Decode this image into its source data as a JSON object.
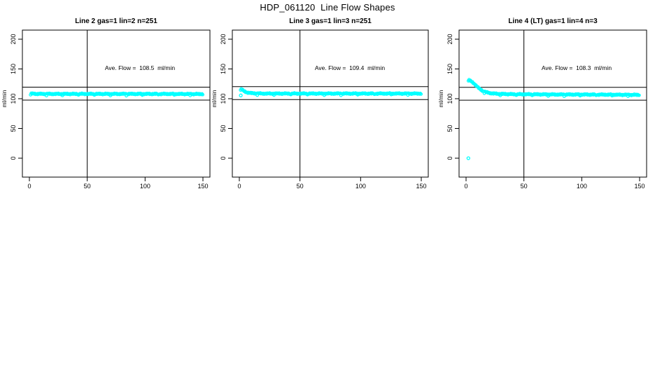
{
  "page_title": "HDP_061120  Line Flow Shapes",
  "colors": {
    "background": "#ffffff",
    "points": "#00ffff",
    "lines": "#000000",
    "text": "#000000"
  },
  "chart_data": {
    "type": "scatter",
    "main_title": "HDP_061120  Line Flow Shapes",
    "ylabel": "ml/min",
    "x_ticks": [
      0,
      50,
      100,
      150
    ],
    "y_ticks": [
      0,
      50,
      100,
      150,
      200
    ],
    "xlim": [
      0,
      150
    ],
    "ylim": [
      -30,
      215
    ],
    "vline_x": 50,
    "grid": false,
    "legend": "none",
    "panels": [
      {
        "title": "Line 2 gas=1 lin=2 n=251",
        "annotation": "Ave. Flow =  108.5  ml/min",
        "ave_flow_ml_min": 108.5,
        "n_points": 251,
        "ref_line_upper": 119.4,
        "ref_line_lower": 97.7,
        "profile": {
          "x": [
            1,
            5,
            10,
            20,
            40,
            60,
            80,
            100,
            120,
            140,
            150
          ],
          "y": [
            108.5,
            108.2,
            108.0,
            108.0,
            108.0,
            108.0,
            108.0,
            108.0,
            108.0,
            107.8,
            107.8
          ]
        },
        "x_start": 1,
        "outliers": []
      },
      {
        "title": "Line 3 gas=1 lin=3 n=251",
        "annotation": "Ave. Flow =  109.4  ml/min",
        "ave_flow_ml_min": 109.4,
        "n_points": 251,
        "ref_line_upper": 120.3,
        "ref_line_lower": 98.5,
        "profile": {
          "x": [
            1,
            2,
            3,
            4,
            6,
            8,
            10,
            15,
            20,
            40,
            60,
            80,
            100,
            120,
            140,
            150
          ],
          "y": [
            116.5,
            115.5,
            114.0,
            112.5,
            110.8,
            109.8,
            109.3,
            108.8,
            108.6,
            108.6,
            108.6,
            108.6,
            108.6,
            108.6,
            108.6,
            108.6
          ]
        },
        "x_start": 1,
        "outliers": [
          {
            "x": 1.2,
            "y": 105.5
          }
        ]
      },
      {
        "title": "Line 4 (LT) gas=1 lin=4 n=3",
        "annotation": "Ave. Flow =  108.3  ml/min",
        "ave_flow_ml_min": 108.3,
        "n_points": 3,
        "ref_line_upper": 119.1,
        "ref_line_lower": 97.5,
        "profile": {
          "x": [
            2,
            4,
            6,
            8,
            10,
            12,
            15,
            18,
            22,
            26,
            30,
            40,
            60,
            80,
            100,
            120,
            140,
            150
          ],
          "y": [
            132.0,
            129.5,
            127.0,
            123.5,
            119.5,
            116.0,
            112.5,
            110.5,
            109.0,
            108.3,
            108.0,
            107.5,
            107.3,
            107.0,
            107.0,
            106.8,
            106.5,
            106.5
          ]
        },
        "x_start": 2,
        "outliers": [
          {
            "x": 2,
            "y": 0
          }
        ]
      }
    ]
  }
}
